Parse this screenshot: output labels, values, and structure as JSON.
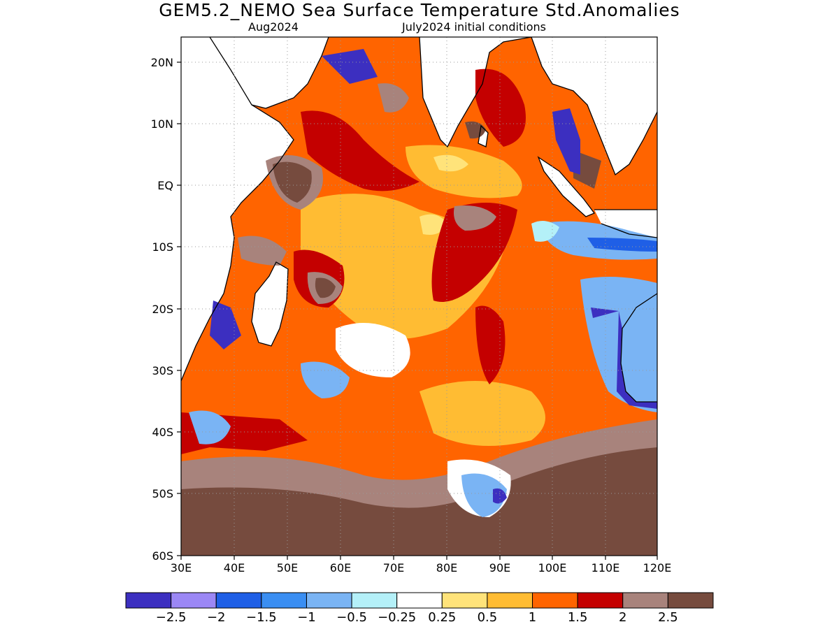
{
  "header": {
    "title": "GEM5.2_NEMO Sea Surface Temperature Std.Anomalies",
    "month": "Aug2024",
    "init": "July2024 initial conditions"
  },
  "map": {
    "lon_range": [
      30,
      120
    ],
    "lat_range": [
      -60,
      24
    ],
    "lon_ticks": [
      "30E",
      "40E",
      "50E",
      "60E",
      "70E",
      "80E",
      "90E",
      "100E",
      "110E",
      "120E"
    ],
    "lat_ticks": [
      "20N",
      "10N",
      "EQ",
      "10S",
      "20S",
      "30S",
      "40S",
      "50S",
      "60S"
    ],
    "grid": "dotted"
  },
  "colorbar": {
    "colors": [
      "#3c2fc0",
      "#9b87f5",
      "#1f5fe6",
      "#3a8ef2",
      "#7ab4f4",
      "#b4f0f8",
      "#ffffff",
      "#ffe37a",
      "#ffbc33",
      "#ff6400",
      "#c40000",
      "#a8837c",
      "#764b3e"
    ],
    "labels": [
      "−2.5",
      "−2",
      "−1.5",
      "−1",
      "−0.5",
      "−0.25",
      "0.25",
      "0.5",
      "1",
      "1.5",
      "2",
      "2.5"
    ]
  }
}
